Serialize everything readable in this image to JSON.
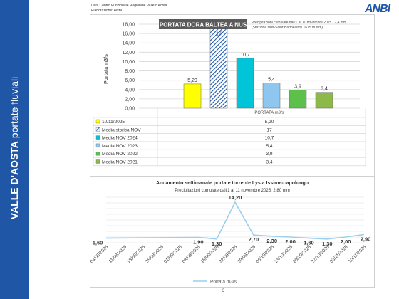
{
  "side_title": {
    "bold": "VALLE D'AOSTA",
    "light": "portate fluviali"
  },
  "source_line1": "Dati: Centro Funzionale Regionale Valle d'Aosta",
  "source_line2": "Elaborazione: ANBI",
  "logo": "ANBI",
  "page_number": "3",
  "colors": {
    "band": "#1f56a6",
    "yellow": "#ffff00",
    "cyan": "#00c4d8",
    "lightblue": "#8fc6f0",
    "green": "#5cc04a",
    "olive": "#8db84a",
    "line": "#9ccfee"
  },
  "chart_data": [
    {
      "type": "bar",
      "title": "PORTATA DORA BALTEA A NUS",
      "note_line1": "Precipitazioni cumulate dall'1 al 11 novembre 2025 : 7,4 mm",
      "note_line2": "(Stazione Nus-Saint Barthelemy 1675 m slm)",
      "ylabel": "Portata m3/s",
      "category": "PORTATA m3/s",
      "ylim": [
        0,
        18
      ],
      "yticks": [
        "0,00",
        "2,00",
        "4,00",
        "6,00",
        "8,00",
        "10,00",
        "12,00",
        "14,00",
        "16,00",
        "18,00"
      ],
      "grid": true,
      "series": [
        {
          "name": "10/11/2025",
          "value": 5.2,
          "label": "5,20",
          "color": "#ffff00",
          "pattern": "solid"
        },
        {
          "name": "Media storica NOV",
          "value": 17,
          "label": "17",
          "color": "#1f56a6",
          "pattern": "hatch"
        },
        {
          "name": "Media NOV 2024",
          "value": 10.7,
          "label": "10,7",
          "color": "#00c4d8",
          "pattern": "solid"
        },
        {
          "name": "Media NOV 2023",
          "value": 5.4,
          "label": "5,4",
          "color": "#8fc6f0",
          "pattern": "solid"
        },
        {
          "name": "Media NOV 2022",
          "value": 3.9,
          "label": "3,9",
          "color": "#5cc04a",
          "pattern": "solid"
        },
        {
          "name": "Media NOV 2021",
          "value": 3.4,
          "label": "3,4",
          "color": "#8db84a",
          "pattern": "solid"
        }
      ]
    },
    {
      "type": "line",
      "title": "Andamento settimanale portate torrente Lys a Issime-capoluogo",
      "subtitle": "Precipitazioni cumulate dall'1 al 11 novembre 2025: 2,80 mm",
      "legend": "Portata m3/s",
      "series_name": "Portata m3/s",
      "ylim": [
        0,
        16
      ],
      "grid": true,
      "x": [
        "04/08/2025",
        "11/08/2025",
        "18/08/2025",
        "25/08/2025",
        "01/09/2025",
        "08/09/2025",
        "15/09/2025",
        "22/09/2025",
        "29/09/2025",
        "06/10/2025",
        "13/10/2025",
        "20/10/2025",
        "27/10/2025",
        "03/11/2025",
        "10/11/2025"
      ],
      "values": [
        1.6,
        null,
        null,
        null,
        null,
        1.9,
        1.3,
        14.2,
        2.7,
        2.3,
        2.0,
        1.6,
        1.3,
        2.0,
        2.9
      ],
      "labels": [
        "1,60",
        "",
        "",
        "",
        "",
        "1,90",
        "1,30",
        "14,20",
        "2,70",
        "2,30",
        "2,00",
        "1,60",
        "1,30",
        "2,00",
        "2,90"
      ]
    }
  ]
}
